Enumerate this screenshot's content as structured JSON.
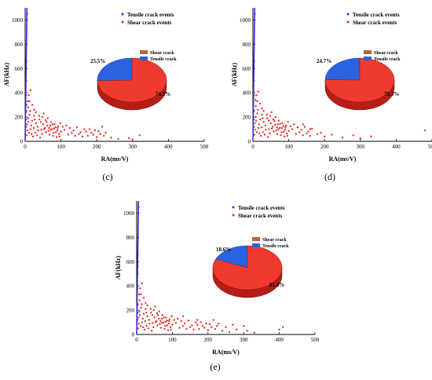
{
  "figure": {
    "colors": {
      "tensile": "#3b2bd6",
      "shear": "#e8302a",
      "pie_shear": "#f03a2f",
      "pie_shear_side": "#b51d16",
      "pie_tensile": "#2a62e0",
      "pie_tensile_side": "#1a3f99",
      "legend_shear_swatch": "#b3683a"
    }
  },
  "chart_data": [
    {
      "type": "scatter",
      "caption": "(c)",
      "xlabel": "RA(ms/V)",
      "ylabel": "AF(kHz)",
      "xlim": [
        0,
        500
      ],
      "ylim": [
        0,
        1100
      ],
      "xticks": [
        "0",
        "100",
        "200",
        "300",
        "400",
        "500"
      ],
      "yticks": [
        "0",
        "200",
        "400",
        "600",
        "800",
        "1000"
      ],
      "legend": {
        "position": "top-right",
        "tensile": "Tensile crack events",
        "shear": "Shear crack events"
      },
      "tensile_points": [
        [
          0.2,
          120
        ],
        [
          0.4,
          250
        ],
        [
          0.6,
          500
        ],
        [
          1,
          660
        ],
        [
          1.5,
          800
        ],
        [
          2.5,
          1000
        ],
        [
          3,
          1050
        ],
        [
          0.5,
          380
        ],
        [
          0.3,
          180
        ],
        [
          1,
          300
        ]
      ],
      "shear_points": [
        [
          5,
          140
        ],
        [
          8,
          190
        ],
        [
          12,
          220
        ],
        [
          15,
          100
        ],
        [
          20,
          170
        ],
        [
          25,
          210
        ],
        [
          30,
          150
        ],
        [
          35,
          120
        ],
        [
          40,
          180
        ],
        [
          45,
          95
        ],
        [
          50,
          140
        ],
        [
          55,
          110
        ],
        [
          60,
          160
        ],
        [
          65,
          85
        ],
        [
          70,
          130
        ],
        [
          75,
          100
        ],
        [
          80,
          70
        ],
        [
          85,
          115
        ],
        [
          90,
          90
        ],
        [
          95,
          60
        ],
        [
          100,
          80
        ],
        [
          110,
          95
        ],
        [
          120,
          55
        ],
        [
          130,
          70
        ],
        [
          140,
          45
        ],
        [
          150,
          60
        ],
        [
          160,
          40
        ],
        [
          170,
          80
        ],
        [
          180,
          100
        ],
        [
          190,
          55
        ],
        [
          200,
          35
        ],
        [
          210,
          60
        ],
        [
          220,
          45
        ],
        [
          240,
          30
        ],
        [
          260,
          20
        ],
        [
          290,
          25
        ],
        [
          300,
          15
        ],
        [
          320,
          50
        ],
        [
          10,
          380
        ],
        [
          15,
          420
        ],
        [
          20,
          300
        ],
        [
          25,
          260
        ],
        [
          8,
          280
        ],
        [
          12,
          330
        ],
        [
          30,
          240
        ],
        [
          6,
          90
        ],
        [
          18,
          60
        ],
        [
          22,
          40
        ],
        [
          28,
          70
        ],
        [
          33,
          50
        ],
        [
          42,
          30
        ],
        [
          48,
          200
        ],
        [
          52,
          230
        ],
        [
          58,
          75
        ],
        [
          63,
          190
        ],
        [
          68,
          55
        ],
        [
          72,
          160
        ],
        [
          78,
          45
        ],
        [
          82,
          140
        ],
        [
          88,
          35
        ],
        [
          92,
          125
        ],
        [
          98,
          150
        ],
        [
          105,
          120
        ],
        [
          115,
          130
        ],
        [
          125,
          110
        ],
        [
          135,
          90
        ],
        [
          145,
          115
        ],
        [
          155,
          75
        ],
        [
          165,
          100
        ],
        [
          175,
          45
        ],
        [
          185,
          70
        ],
        [
          195,
          90
        ],
        [
          205,
          85
        ],
        [
          215,
          120
        ],
        [
          225,
          70
        ],
        [
          4,
          50
        ],
        [
          3,
          240
        ],
        [
          7,
          330
        ],
        [
          9,
          160
        ],
        [
          11,
          70
        ],
        [
          14,
          250
        ],
        [
          17,
          130
        ],
        [
          24,
          110
        ],
        [
          27,
          180
        ],
        [
          36,
          90
        ],
        [
          39,
          210
        ],
        [
          44,
          160
        ],
        [
          47,
          60
        ],
        [
          53,
          100
        ],
        [
          57,
          175
        ],
        [
          62,
          130
        ],
        [
          67,
          110
        ],
        [
          71,
          95
        ],
        [
          76,
          140
        ],
        [
          81,
          105
        ],
        [
          86,
          75
        ],
        [
          91,
          110
        ],
        [
          96,
          40
        ]
      ],
      "pie": {
        "slices": [
          {
            "label": "Tensile crack",
            "percent": 25.5,
            "pct_text": "25.5%"
          },
          {
            "label": "Shear crack",
            "percent": 74.5,
            "pct_text": "74.5%"
          }
        ],
        "legend": [
          "Shear crack",
          "Tensile crack"
        ]
      }
    },
    {
      "type": "scatter",
      "caption": "(d)",
      "xlabel": "RA(ms/V)",
      "ylabel": "AF(kHz)",
      "xlim": [
        0,
        500
      ],
      "ylim": [
        0,
        1100
      ],
      "xticks": [
        "0",
        "100",
        "200",
        "300",
        "400",
        "500"
      ],
      "yticks": [
        "0",
        "200",
        "400",
        "600",
        "800",
        "1000"
      ],
      "legend": {
        "position": "top-right",
        "tensile": "Tensile crack events",
        "shear": "Shear crack events"
      },
      "tensile_points": [
        [
          0.2,
          120
        ],
        [
          0.4,
          250
        ],
        [
          0.6,
          500
        ],
        [
          1,
          660
        ],
        [
          1.5,
          800
        ],
        [
          2.5,
          1000
        ],
        [
          3,
          1050
        ],
        [
          0.5,
          380
        ],
        [
          0.3,
          180
        ]
      ],
      "shear_points": [
        [
          5,
          150
        ],
        [
          8,
          200
        ],
        [
          12,
          230
        ],
        [
          15,
          110
        ],
        [
          20,
          180
        ],
        [
          25,
          220
        ],
        [
          30,
          160
        ],
        [
          35,
          130
        ],
        [
          40,
          190
        ],
        [
          45,
          100
        ],
        [
          50,
          150
        ],
        [
          55,
          120
        ],
        [
          60,
          170
        ],
        [
          65,
          90
        ],
        [
          70,
          140
        ],
        [
          75,
          110
        ],
        [
          80,
          75
        ],
        [
          85,
          125
        ],
        [
          90,
          95
        ],
        [
          95,
          65
        ],
        [
          100,
          85
        ],
        [
          110,
          100
        ],
        [
          120,
          60
        ],
        [
          130,
          75
        ],
        [
          140,
          50
        ],
        [
          150,
          65
        ],
        [
          160,
          45
        ],
        [
          180,
          60
        ],
        [
          200,
          40
        ],
        [
          220,
          55
        ],
        [
          250,
          30
        ],
        [
          280,
          50
        ],
        [
          300,
          25
        ],
        [
          330,
          40
        ],
        [
          480,
          90
        ],
        [
          10,
          380
        ],
        [
          15,
          410
        ],
        [
          20,
          310
        ],
        [
          25,
          270
        ],
        [
          8,
          290
        ],
        [
          12,
          330
        ],
        [
          30,
          250
        ],
        [
          6,
          95
        ],
        [
          18,
          65
        ],
        [
          22,
          45
        ],
        [
          28,
          75
        ],
        [
          33,
          55
        ],
        [
          42,
          35
        ],
        [
          48,
          210
        ],
        [
          52,
          240
        ],
        [
          58,
          80
        ],
        [
          63,
          200
        ],
        [
          68,
          60
        ],
        [
          72,
          170
        ],
        [
          78,
          50
        ],
        [
          82,
          150
        ],
        [
          88,
          40
        ],
        [
          92,
          130
        ],
        [
          98,
          160
        ],
        [
          105,
          125
        ],
        [
          115,
          140
        ],
        [
          125,
          115
        ],
        [
          135,
          95
        ],
        [
          145,
          120
        ],
        [
          155,
          80
        ],
        [
          165,
          105
        ],
        [
          4,
          55
        ],
        [
          3,
          250
        ],
        [
          7,
          340
        ],
        [
          9,
          170
        ],
        [
          11,
          75
        ],
        [
          14,
          260
        ],
        [
          17,
          140
        ],
        [
          24,
          115
        ],
        [
          27,
          190
        ],
        [
          36,
          95
        ],
        [
          39,
          220
        ],
        [
          44,
          170
        ],
        [
          47,
          65
        ],
        [
          53,
          105
        ],
        [
          57,
          180
        ],
        [
          62,
          135
        ],
        [
          67,
          115
        ],
        [
          71,
          100
        ],
        [
          76,
          145
        ],
        [
          81,
          110
        ],
        [
          86,
          80
        ],
        [
          91,
          115
        ],
        [
          96,
          45
        ],
        [
          140,
          140
        ],
        [
          160,
          100
        ],
        [
          190,
          70
        ]
      ],
      "pie": {
        "slices": [
          {
            "label": "Tensile crack",
            "percent": 24.7,
            "pct_text": "24.7%"
          },
          {
            "label": "Shear crack",
            "percent": 75.3,
            "pct_text": "75.3%"
          }
        ],
        "legend": [
          "Shear crack",
          "Tensile crack"
        ]
      }
    },
    {
      "type": "scatter",
      "caption": "(e)",
      "xlabel": "RA(ms/V)",
      "ylabel": "AF(kHz)",
      "xlim": [
        0,
        500
      ],
      "ylim": [
        0,
        1100
      ],
      "xticks": [
        "0",
        "100",
        "200",
        "300",
        "400",
        "500"
      ],
      "yticks": [
        "0",
        "200",
        "400",
        "600",
        "800",
        "1000"
      ],
      "legend": {
        "position": "top-right",
        "tensile": "Tensile crack events",
        "shear": "Shear crack events"
      },
      "tensile_points": [
        [
          0.2,
          120
        ],
        [
          0.4,
          250
        ],
        [
          0.6,
          500
        ],
        [
          1,
          660
        ],
        [
          1.5,
          800
        ],
        [
          2.5,
          1000
        ],
        [
          3,
          1050
        ],
        [
          0.5,
          380
        ],
        [
          0.3,
          180
        ],
        [
          0.8,
          560
        ]
      ],
      "shear_points": [
        [
          5,
          140
        ],
        [
          8,
          190
        ],
        [
          12,
          220
        ],
        [
          15,
          100
        ],
        [
          20,
          170
        ],
        [
          25,
          210
        ],
        [
          30,
          150
        ],
        [
          35,
          120
        ],
        [
          40,
          180
        ],
        [
          45,
          95
        ],
        [
          50,
          140
        ],
        [
          55,
          110
        ],
        [
          60,
          160
        ],
        [
          65,
          85
        ],
        [
          70,
          130
        ],
        [
          75,
          100
        ],
        [
          80,
          70
        ],
        [
          85,
          115
        ],
        [
          90,
          90
        ],
        [
          95,
          60
        ],
        [
          100,
          80
        ],
        [
          110,
          95
        ],
        [
          120,
          55
        ],
        [
          130,
          70
        ],
        [
          140,
          45
        ],
        [
          150,
          60
        ],
        [
          160,
          40
        ],
        [
          170,
          80
        ],
        [
          180,
          100
        ],
        [
          190,
          55
        ],
        [
          200,
          35
        ],
        [
          210,
          60
        ],
        [
          220,
          45
        ],
        [
          240,
          30
        ],
        [
          260,
          20
        ],
        [
          280,
          40
        ],
        [
          310,
          30
        ],
        [
          330,
          15
        ],
        [
          400,
          40
        ],
        [
          410,
          60
        ],
        [
          10,
          380
        ],
        [
          15,
          420
        ],
        [
          20,
          300
        ],
        [
          25,
          260
        ],
        [
          8,
          280
        ],
        [
          12,
          330
        ],
        [
          30,
          240
        ],
        [
          6,
          90
        ],
        [
          18,
          60
        ],
        [
          22,
          40
        ],
        [
          28,
          70
        ],
        [
          33,
          50
        ],
        [
          42,
          30
        ],
        [
          48,
          200
        ],
        [
          52,
          230
        ],
        [
          58,
          75
        ],
        [
          63,
          190
        ],
        [
          68,
          55
        ],
        [
          72,
          160
        ],
        [
          78,
          45
        ],
        [
          82,
          140
        ],
        [
          88,
          35
        ],
        [
          92,
          125
        ],
        [
          98,
          150
        ],
        [
          105,
          120
        ],
        [
          115,
          130
        ],
        [
          125,
          110
        ],
        [
          135,
          90
        ],
        [
          145,
          115
        ],
        [
          155,
          75
        ],
        [
          165,
          100
        ],
        [
          175,
          45
        ],
        [
          185,
          70
        ],
        [
          195,
          90
        ],
        [
          205,
          85
        ],
        [
          215,
          120
        ],
        [
          225,
          70
        ],
        [
          4,
          50
        ],
        [
          3,
          240
        ],
        [
          7,
          330
        ],
        [
          9,
          160
        ],
        [
          11,
          70
        ],
        [
          14,
          250
        ],
        [
          17,
          130
        ],
        [
          24,
          110
        ],
        [
          27,
          180
        ],
        [
          36,
          90
        ],
        [
          39,
          210
        ],
        [
          44,
          160
        ],
        [
          47,
          60
        ],
        [
          53,
          100
        ],
        [
          57,
          175
        ],
        [
          62,
          130
        ],
        [
          67,
          110
        ],
        [
          71,
          95
        ],
        [
          76,
          140
        ],
        [
          81,
          105
        ],
        [
          86,
          75
        ],
        [
          91,
          110
        ],
        [
          96,
          40
        ],
        [
          130,
          150
        ],
        [
          170,
          120
        ],
        [
          230,
          90
        ],
        [
          250,
          60
        ],
        [
          270,
          80
        ],
        [
          300,
          70
        ]
      ],
      "pie": {
        "slices": [
          {
            "label": "Tensile crack",
            "percent": 18.6,
            "pct_text": "18.6%"
          },
          {
            "label": "Shear crack",
            "percent": 81.4,
            "pct_text": "81.4%"
          }
        ],
        "legend": [
          "Shear crack",
          "Tensile crack"
        ]
      }
    }
  ]
}
